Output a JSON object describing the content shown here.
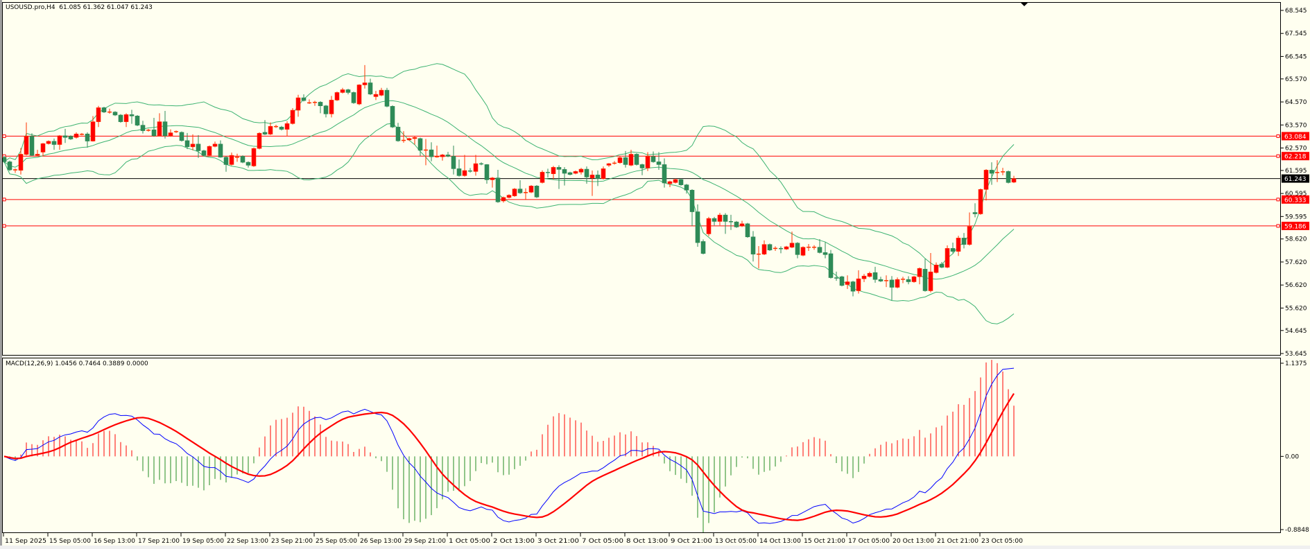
{
  "header": {
    "symbol": "USOUSD.pro,H4",
    "ohlc": "61.085 61.362 61.047 61.243"
  },
  "macd_header": {
    "label": "MACD(12,26,9)",
    "values": "1.0456 0.7464 0.3889 0.0000"
  },
  "colors": {
    "background": "#FFFFF0",
    "bull": "#FF0000",
    "bull_wick": "#FF3300",
    "bear": "#2E8B57",
    "bands": "#3CB371",
    "level": "#FF0000",
    "price_line": "#000000",
    "macd_main": "#0000FF",
    "macd_signal": "#FF0000",
    "hist_pos": "#FF0000",
    "hist_neg": "#228B22"
  },
  "chart_data": [
    {
      "type": "candlestick",
      "indicator": "Bollinger Bands (20, 2)",
      "ylim": [
        53.645,
        68.545
      ],
      "price_axis": [
        "68.545",
        "67.545",
        "66.545",
        "65.570",
        "64.570",
        "63.570",
        "62.570",
        "61.595",
        "60.595",
        "59.595",
        "58.620",
        "57.620",
        "56.620",
        "55.620",
        "54.645",
        "53.645"
      ],
      "levels": [
        {
          "value": "63.084"
        },
        {
          "value": "62.218"
        },
        {
          "value": "60.333"
        },
        {
          "value": "59.186"
        }
      ],
      "current_price": "61.243",
      "time_labels": [
        "11 Sep 2025",
        "15 Sep 05:00",
        "16 Sep 13:00",
        "17 Sep 21:00",
        "19 Sep 05:00",
        "22 Sep 13:00",
        "23 Sep 21:00",
        "25 Sep 05:00",
        "26 Sep 13:00",
        "29 Sep 21:00",
        "1 Oct 05:00",
        "2 Oct 13:00",
        "3 Oct 21:00",
        "7 Oct 05:00",
        "8 Oct 13:00",
        "9 Oct 21:00",
        "13 Oct 05:00",
        "14 Oct 13:00",
        "15 Oct 21:00",
        "17 Oct 05:00",
        "20 Oct 13:00",
        "21 Oct 21:00",
        "23 Oct 05:00"
      ],
      "candles_ohlc": [
        [
          62.17,
          62.22,
          61.92,
          61.97
        ],
        [
          61.97,
          62.02,
          61.57,
          61.62
        ],
        [
          61.62,
          61.68,
          61.49,
          61.62
        ],
        [
          61.6,
          62.57,
          61.42,
          62.3
        ],
        [
          62.29,
          63.68,
          62.25,
          63.08
        ],
        [
          63.08,
          63.21,
          62.21,
          62.25
        ],
        [
          62.25,
          62.49,
          62.21,
          62.3
        ],
        [
          62.39,
          62.79,
          62.21,
          62.76
        ],
        [
          62.76,
          62.9,
          62.72,
          62.86
        ],
        [
          62.86,
          62.98,
          62.49,
          62.72
        ],
        [
          62.72,
          63.13,
          62.49,
          63.1
        ],
        [
          63.1,
          63.4,
          62.79,
          63.03
        ],
        [
          63.08,
          63.12,
          62.92,
          62.96
        ],
        [
          63.03,
          63.25,
          62.98,
          63.18
        ],
        [
          63.15,
          63.22,
          63.12,
          63.18
        ],
        [
          63.18,
          63.25,
          62.59,
          62.87
        ],
        [
          62.87,
          63.96,
          62.85,
          63.71
        ],
        [
          63.71,
          64.4,
          63.48,
          64.32
        ],
        [
          64.32,
          64.36,
          64.09,
          64.13
        ],
        [
          64.13,
          64.28,
          64.06,
          64.13
        ],
        [
          64.13,
          64.17,
          63.96,
          64.0
        ],
        [
          64.0,
          64.04,
          63.67,
          63.71
        ],
        [
          63.71,
          64.08,
          63.48,
          64.02
        ],
        [
          64.02,
          64.23,
          63.62,
          63.96
        ],
        [
          63.96,
          64.0,
          63.52,
          63.56
        ],
        [
          63.56,
          63.75,
          63.2,
          63.32
        ],
        [
          63.32,
          63.4,
          63.28,
          63.36
        ],
        [
          63.36,
          63.88,
          63.06,
          63.1
        ],
        [
          63.1,
          64.08,
          63.08,
          63.71
        ],
        [
          63.71,
          64.18,
          62.98,
          63.1
        ],
        [
          63.1,
          63.38,
          63.06,
          63.23
        ],
        [
          63.28,
          63.33,
          63.22,
          63.28
        ],
        [
          63.25,
          63.29,
          62.85,
          62.89
        ],
        [
          62.89,
          63.22,
          62.52,
          62.62
        ],
        [
          62.62,
          63.16,
          62.47,
          62.74
        ],
        [
          62.74,
          63.13,
          62.14,
          62.45
        ],
        [
          62.45,
          62.49,
          62.21,
          62.25
        ],
        [
          62.25,
          62.68,
          62.21,
          62.64
        ],
        [
          62.64,
          62.85,
          62.6,
          62.74
        ],
        [
          62.74,
          62.9,
          62.15,
          62.17
        ],
        [
          62.17,
          62.21,
          61.54,
          61.85
        ],
        [
          61.85,
          62.37,
          61.81,
          62.25
        ],
        [
          62.17,
          62.32,
          61.97,
          62.17
        ],
        [
          62.21,
          62.25,
          61.91,
          61.95
        ],
        [
          61.95,
          61.99,
          61.72,
          61.82
        ],
        [
          61.79,
          62.59,
          61.75,
          62.55
        ],
        [
          62.55,
          63.25,
          62.51,
          63.21
        ],
        [
          63.25,
          63.78,
          63.13,
          63.17
        ],
        [
          63.17,
          63.68,
          63.13,
          63.51
        ],
        [
          63.5,
          63.58,
          63.44,
          63.5
        ],
        [
          63.48,
          63.53,
          63.33,
          63.38
        ],
        [
          63.38,
          63.73,
          63.08,
          63.63
        ],
        [
          63.63,
          64.3,
          63.59,
          64.21
        ],
        [
          64.21,
          64.88,
          63.93,
          64.75
        ],
        [
          64.75,
          64.9,
          64.59,
          64.63
        ],
        [
          64.53,
          64.68,
          64.48,
          64.53
        ],
        [
          64.55,
          64.62,
          64.4,
          64.55
        ],
        [
          64.56,
          64.6,
          64.08,
          64.4
        ],
        [
          64.4,
          64.44,
          63.9,
          64.05
        ],
        [
          64.05,
          64.83,
          63.9,
          64.65
        ],
        [
          64.65,
          65.02,
          64.61,
          64.98
        ],
        [
          64.98,
          65.18,
          64.94,
          65.1
        ],
        [
          65.1,
          65.14,
          64.9,
          64.98
        ],
        [
          64.98,
          65.02,
          64.49,
          64.53
        ],
        [
          64.48,
          65.34,
          64.43,
          65.31
        ],
        [
          65.31,
          66.17,
          65.15,
          65.4
        ],
        [
          65.4,
          65.58,
          64.87,
          64.91
        ],
        [
          64.8,
          65.05,
          64.65,
          64.9
        ],
        [
          64.86,
          65.18,
          64.82,
          65.08
        ],
        [
          65.08,
          65.18,
          64.34,
          64.38
        ],
        [
          64.38,
          64.42,
          63.44,
          63.48
        ],
        [
          63.48,
          63.66,
          62.84,
          62.88
        ],
        [
          62.88,
          63.3,
          62.8,
          62.92
        ],
        [
          62.92,
          63.02,
          62.88,
          62.98
        ],
        [
          62.98,
          63.07,
          62.72,
          63.03
        ],
        [
          62.98,
          63.02,
          62.22,
          62.47
        ],
        [
          62.47,
          62.96,
          61.82,
          62.49
        ],
        [
          62.49,
          62.82,
          61.99,
          62.19
        ],
        [
          62.19,
          62.67,
          62.15,
          62.19
        ],
        [
          62.19,
          62.31,
          62.02,
          62.27
        ],
        [
          62.27,
          62.4,
          62.17,
          62.21
        ],
        [
          62.21,
          62.67,
          61.42,
          61.67
        ],
        [
          61.67,
          62.07,
          61.33,
          61.37
        ],
        [
          61.37,
          62.27,
          61.33,
          61.59
        ],
        [
          61.59,
          61.7,
          61.5,
          61.55
        ],
        [
          61.55,
          62.27,
          61.37,
          61.89
        ],
        [
          61.89,
          61.95,
          61.82,
          61.87
        ],
        [
          61.85,
          61.87,
          61.02,
          61.19
        ],
        [
          61.19,
          61.31,
          60.85,
          61.27
        ],
        [
          61.27,
          61.62,
          60.19,
          60.23
        ],
        [
          60.27,
          60.46,
          60.2,
          60.42
        ],
        [
          60.42,
          60.56,
          60.38,
          60.52
        ],
        [
          60.49,
          60.83,
          60.45,
          60.79
        ],
        [
          60.79,
          61.17,
          60.58,
          60.62
        ],
        [
          60.62,
          60.82,
          60.32,
          60.65
        ],
        [
          60.65,
          60.96,
          60.61,
          60.92
        ],
        [
          60.92,
          60.96,
          60.4,
          60.44
        ],
        [
          61.07,
          61.6,
          61.03,
          61.52
        ],
        [
          61.52,
          61.67,
          61.29,
          61.49
        ],
        [
          61.45,
          61.79,
          61.21,
          61.73
        ],
        [
          61.73,
          61.82,
          60.79,
          61.64
        ],
        [
          61.64,
          61.74,
          60.94,
          61.47
        ],
        [
          61.5,
          61.54,
          61.38,
          61.42
        ],
        [
          61.47,
          61.59,
          61.43,
          61.55
        ],
        [
          61.52,
          61.71,
          61.42,
          61.65
        ],
        [
          61.65,
          61.77,
          61.02,
          61.31
        ],
        [
          61.27,
          61.59,
          60.49,
          61.4
        ],
        [
          61.4,
          61.59,
          60.92,
          61.24
        ],
        [
          61.24,
          61.77,
          61.2,
          61.67
        ],
        [
          61.82,
          61.92,
          61.75,
          61.89
        ],
        [
          61.89,
          62.0,
          61.85,
          61.93
        ],
        [
          61.93,
          62.2,
          61.89,
          62.15
        ],
        [
          62.15,
          62.44,
          61.72,
          61.85
        ],
        [
          61.82,
          62.49,
          61.78,
          62.3
        ],
        [
          62.3,
          62.34,
          61.81,
          61.85
        ],
        [
          61.85,
          61.89,
          61.39,
          61.7
        ],
        [
          61.7,
          62.39,
          61.57,
          62.2
        ],
        [
          62.2,
          62.42,
          61.93,
          61.97
        ],
        [
          61.97,
          62.39,
          61.62,
          61.85
        ],
        [
          61.85,
          62.12,
          60.85,
          61.05
        ],
        [
          61.02,
          61.15,
          60.87,
          61.11
        ],
        [
          61.07,
          61.24,
          61.03,
          61.2
        ],
        [
          61.2,
          61.24,
          60.93,
          60.97
        ],
        [
          60.97,
          61.01,
          60.59,
          60.74
        ],
        [
          60.74,
          60.78,
          59.18,
          59.8
        ],
        [
          59.8,
          60.12,
          58.28,
          58.46
        ],
        [
          58.51,
          58.6,
          57.95,
          57.99
        ],
        [
          58.84,
          59.58,
          58.74,
          59.51
        ],
        [
          59.51,
          59.58,
          59.21,
          59.38
        ],
        [
          59.38,
          59.75,
          59.21,
          59.66
        ],
        [
          59.66,
          59.74,
          58.84,
          59.38
        ],
        [
          59.38,
          59.67,
          59.01,
          59.36
        ],
        [
          59.36,
          59.4,
          59.1,
          59.14
        ],
        [
          59.18,
          59.41,
          59.14,
          59.28
        ],
        [
          59.28,
          59.32,
          58.67,
          58.71
        ],
        [
          58.71,
          58.96,
          57.64,
          57.96
        ],
        [
          57.96,
          58.31,
          57.34,
          57.96
        ],
        [
          57.96,
          58.56,
          57.92,
          58.38
        ],
        [
          58.38,
          58.42,
          58.1,
          58.14
        ],
        [
          58.21,
          58.3,
          58.1,
          58.21
        ],
        [
          58.21,
          58.3,
          58.0,
          58.19
        ],
        [
          58.18,
          58.32,
          58.14,
          58.28
        ],
        [
          58.26,
          58.94,
          58.22,
          58.44
        ],
        [
          58.44,
          58.48,
          57.78,
          57.94
        ],
        [
          57.91,
          58.3,
          57.87,
          58.26
        ],
        [
          58.26,
          58.4,
          58.1,
          58.26
        ],
        [
          58.26,
          58.35,
          58.15,
          58.26
        ],
        [
          58.26,
          58.61,
          57.99,
          58.03
        ],
        [
          58.03,
          58.48,
          57.78,
          57.94
        ],
        [
          57.98,
          58.14,
          56.9,
          56.94
        ],
        [
          56.94,
          57.2,
          56.8,
          56.91
        ],
        [
          56.98,
          57.02,
          56.56,
          56.6
        ],
        [
          56.64,
          57.04,
          56.45,
          56.76
        ],
        [
          56.76,
          56.8,
          56.13,
          56.35
        ],
        [
          56.37,
          57.26,
          56.25,
          56.89
        ],
        [
          56.89,
          57.1,
          56.75,
          57.01
        ],
        [
          56.99,
          57.2,
          56.95,
          57.13
        ],
        [
          57.16,
          57.41,
          56.72,
          56.86
        ],
        [
          56.86,
          56.98,
          56.75,
          56.79
        ],
        [
          56.81,
          57.04,
          56.53,
          56.81
        ],
        [
          56.84,
          57.01,
          55.95,
          56.52
        ],
        [
          56.52,
          56.95,
          56.48,
          56.86
        ],
        [
          56.86,
          56.98,
          56.7,
          56.88
        ],
        [
          56.86,
          57.0,
          56.65,
          56.76
        ],
        [
          56.76,
          57.02,
          56.72,
          56.98
        ],
        [
          56.98,
          57.38,
          56.65,
          57.34
        ],
        [
          57.31,
          57.76,
          56.33,
          56.37
        ],
        [
          56.37,
          58.01,
          56.3,
          57.19
        ],
        [
          57.16,
          57.6,
          57.12,
          57.49
        ],
        [
          57.53,
          57.62,
          57.35,
          57.39
        ],
        [
          57.39,
          58.34,
          57.35,
          58.21
        ],
        [
          58.21,
          58.46,
          58.0,
          58.08
        ],
        [
          58.08,
          58.76,
          57.88,
          58.66
        ],
        [
          58.66,
          58.88,
          58.21,
          58.38
        ],
        [
          58.38,
          59.77,
          58.33,
          59.16
        ],
        [
          59.77,
          60.17,
          59.56,
          59.71
        ],
        [
          59.71,
          60.81,
          59.67,
          60.77
        ],
        [
          60.77,
          61.65,
          60.29,
          61.61
        ],
        [
          61.61,
          61.95,
          60.97,
          61.47
        ],
        [
          61.49,
          62.04,
          61.09,
          61.52
        ],
        [
          61.52,
          61.71,
          61.39,
          61.55
        ],
        [
          61.55,
          61.59,
          61.03,
          61.07
        ],
        [
          61.085,
          61.362,
          61.047,
          61.243
        ]
      ]
    },
    {
      "type": "line",
      "indicator": "MACD(12,26,9)",
      "ylim": [
        -0.8848,
        1.1375
      ],
      "axis_labels": [
        "1.1375",
        "0.00",
        "-0.8848"
      ]
    }
  ]
}
